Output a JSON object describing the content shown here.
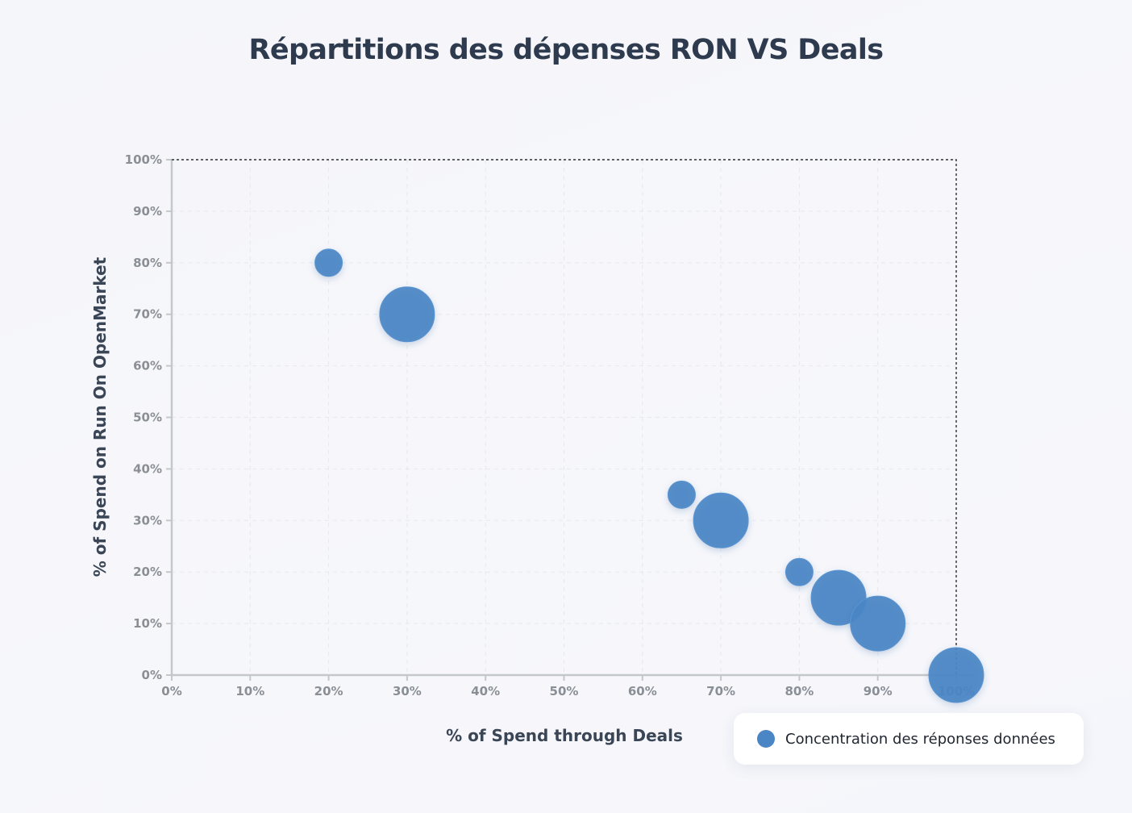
{
  "chart_data": {
    "type": "scatter",
    "title": "Répartitions des dépenses RON VS Deals",
    "xlabel": "% of Spend through Deals",
    "ylabel": "% of Spend on Run On OpenMarket",
    "xlim": [
      0,
      100
    ],
    "ylim": [
      0,
      100
    ],
    "x_ticks": [
      "0%",
      "10%",
      "20%",
      "30%",
      "40%",
      "50%",
      "60%",
      "70%",
      "80%",
      "90%",
      "100%"
    ],
    "y_ticks": [
      "0%",
      "10%",
      "20%",
      "30%",
      "40%",
      "50%",
      "60%",
      "70%",
      "80%",
      "90%",
      "100%"
    ],
    "grid": true,
    "reference_line": {
      "style": "dotted",
      "points": [
        [
          0,
          100
        ],
        [
          100,
          100
        ],
        [
          100,
          0
        ]
      ]
    },
    "legend_position": "bottom-right",
    "series": [
      {
        "name": "Concentration des réponses données",
        "color": "#4a86c5",
        "points": [
          {
            "x": 20,
            "y": 80,
            "size": 1
          },
          {
            "x": 30,
            "y": 70,
            "size": 3
          },
          {
            "x": 65,
            "y": 35,
            "size": 1
          },
          {
            "x": 70,
            "y": 30,
            "size": 3
          },
          {
            "x": 80,
            "y": 20,
            "size": 1
          },
          {
            "x": 85,
            "y": 15,
            "size": 3
          },
          {
            "x": 90,
            "y": 10,
            "size": 3
          },
          {
            "x": 100,
            "y": 0,
            "size": 3
          }
        ]
      }
    ]
  }
}
